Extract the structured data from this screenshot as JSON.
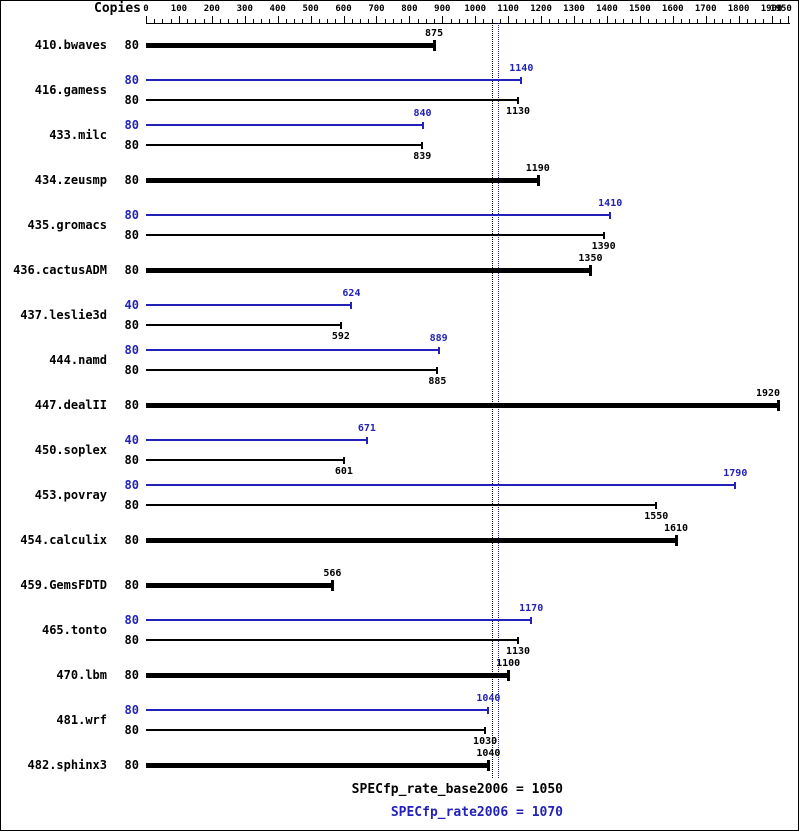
{
  "copies_label": "Copies",
  "colors": {
    "peak": "#2222bb",
    "base": "#000000"
  },
  "footer": {
    "base_text": "SPECfp_rate_base2006 = 1050",
    "peak_text": "SPECfp_rate2006 = 1070"
  },
  "chart_data": {
    "type": "bar",
    "orientation": "horizontal",
    "title": "",
    "xlabel": "",
    "ylabel": "Copies",
    "xlim": [
      0,
      1950
    ],
    "x_ticks": [
      0,
      100,
      200,
      300,
      400,
      500,
      600,
      700,
      800,
      900,
      1000,
      1100,
      1200,
      1300,
      1400,
      1500,
      1600,
      1700,
      1800,
      1900,
      1950
    ],
    "reference_lines": [
      {
        "name": "SPECfp_rate_base2006",
        "value": 1050,
        "color": "#000000"
      },
      {
        "name": "SPECfp_rate2006",
        "value": 1070,
        "color": "#2222bb"
      }
    ],
    "benchmarks": [
      {
        "name": "410.bwaves",
        "bars": [
          {
            "kind": "base",
            "thick": true,
            "copies": 80,
            "value": 875
          }
        ]
      },
      {
        "name": "416.gamess",
        "bars": [
          {
            "kind": "peak",
            "thick": false,
            "copies": 80,
            "value": 1140
          },
          {
            "kind": "base",
            "thick": false,
            "copies": 80,
            "value": 1130
          }
        ]
      },
      {
        "name": "433.milc",
        "bars": [
          {
            "kind": "peak",
            "thick": false,
            "copies": 80,
            "value": 840
          },
          {
            "kind": "base",
            "thick": false,
            "copies": 80,
            "value": 839
          }
        ]
      },
      {
        "name": "434.zeusmp",
        "bars": [
          {
            "kind": "base",
            "thick": true,
            "copies": 80,
            "value": 1190
          }
        ]
      },
      {
        "name": "435.gromacs",
        "bars": [
          {
            "kind": "peak",
            "thick": false,
            "copies": 80,
            "value": 1410
          },
          {
            "kind": "base",
            "thick": false,
            "copies": 80,
            "value": 1390
          }
        ]
      },
      {
        "name": "436.cactusADM",
        "bars": [
          {
            "kind": "base",
            "thick": true,
            "copies": 80,
            "value": 1350
          }
        ]
      },
      {
        "name": "437.leslie3d",
        "bars": [
          {
            "kind": "peak",
            "thick": false,
            "copies": 40,
            "value": 624
          },
          {
            "kind": "base",
            "thick": false,
            "copies": 80,
            "value": 592
          }
        ]
      },
      {
        "name": "444.namd",
        "bars": [
          {
            "kind": "peak",
            "thick": false,
            "copies": 80,
            "value": 889
          },
          {
            "kind": "base",
            "thick": false,
            "copies": 80,
            "value": 885
          }
        ]
      },
      {
        "name": "447.dealII",
        "bars": [
          {
            "kind": "base",
            "thick": true,
            "copies": 80,
            "value": 1920
          }
        ]
      },
      {
        "name": "450.soplex",
        "bars": [
          {
            "kind": "peak",
            "thick": false,
            "copies": 40,
            "value": 671
          },
          {
            "kind": "base",
            "thick": false,
            "copies": 80,
            "value": 601
          }
        ]
      },
      {
        "name": "453.povray",
        "bars": [
          {
            "kind": "peak",
            "thick": false,
            "copies": 80,
            "value": 1790
          },
          {
            "kind": "base",
            "thick": false,
            "copies": 80,
            "value": 1550
          }
        ]
      },
      {
        "name": "454.calculix",
        "bars": [
          {
            "kind": "base",
            "thick": true,
            "copies": 80,
            "value": 1610
          }
        ]
      },
      {
        "name": "459.GemsFDTD",
        "bars": [
          {
            "kind": "base",
            "thick": true,
            "copies": 80,
            "value": 566
          }
        ]
      },
      {
        "name": "465.tonto",
        "bars": [
          {
            "kind": "peak",
            "thick": false,
            "copies": 80,
            "value": 1170
          },
          {
            "kind": "base",
            "thick": false,
            "copies": 80,
            "value": 1130
          }
        ]
      },
      {
        "name": "470.lbm",
        "bars": [
          {
            "kind": "base",
            "thick": true,
            "copies": 80,
            "value": 1100
          }
        ]
      },
      {
        "name": "481.wrf",
        "bars": [
          {
            "kind": "peak",
            "thick": false,
            "copies": 80,
            "value": 1040
          },
          {
            "kind": "base",
            "thick": false,
            "copies": 80,
            "value": 1030
          }
        ]
      },
      {
        "name": "482.sphinx3",
        "bars": [
          {
            "kind": "base",
            "thick": true,
            "copies": 80,
            "value": 1040
          }
        ]
      }
    ]
  }
}
